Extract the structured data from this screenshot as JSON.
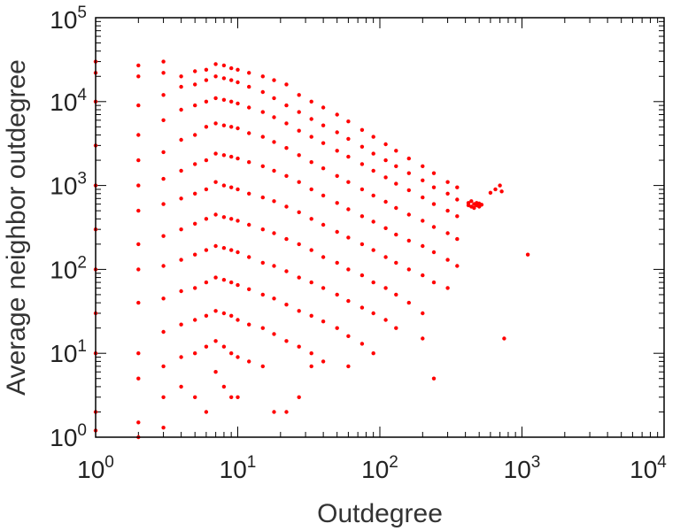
{
  "chart_data": {
    "type": "scatter",
    "title": "",
    "xlabel": "Outdegree",
    "ylabel": "Average neighbor outdegree",
    "x_scale": "log",
    "y_scale": "log",
    "xlim": [
      1,
      10000
    ],
    "ylim": [
      1,
      100000
    ],
    "grid": false,
    "legend": "none",
    "x_ticks": [
      {
        "base": "10",
        "exp": "0",
        "value": 1
      },
      {
        "base": "10",
        "exp": "1",
        "value": 10
      },
      {
        "base": "10",
        "exp": "2",
        "value": 100
      },
      {
        "base": "10",
        "exp": "3",
        "value": 1000
      },
      {
        "base": "10",
        "exp": "4",
        "value": 10000
      }
    ],
    "y_ticks": [
      {
        "base": "10",
        "exp": "0",
        "value": 1
      },
      {
        "base": "10",
        "exp": "1",
        "value": 10
      },
      {
        "base": "10",
        "exp": "2",
        "value": 100
      },
      {
        "base": "10",
        "exp": "3",
        "value": 1000
      },
      {
        "base": "10",
        "exp": "4",
        "value": 10000
      },
      {
        "base": "10",
        "exp": "5",
        "value": 100000
      }
    ],
    "marker_color": "#ff0000",
    "series": [
      {
        "points": [
          [
            1,
            30000
          ],
          [
            1,
            22000
          ],
          [
            1,
            10000
          ],
          [
            1,
            3000
          ],
          [
            1,
            1000
          ],
          [
            1,
            300
          ],
          [
            1,
            100
          ],
          [
            1,
            30
          ],
          [
            1,
            10
          ],
          [
            1,
            2
          ],
          [
            1,
            1.2
          ],
          [
            2,
            27000
          ],
          [
            2,
            20000
          ],
          [
            2,
            9000
          ],
          [
            2,
            4000
          ],
          [
            2,
            2000
          ],
          [
            2,
            1000
          ],
          [
            2,
            500
          ],
          [
            2,
            200
          ],
          [
            2,
            100
          ],
          [
            2,
            40
          ],
          [
            2,
            10
          ],
          [
            2,
            5
          ],
          [
            2,
            1.5
          ],
          [
            2,
            1
          ],
          [
            3,
            30000
          ],
          [
            3,
            22000
          ],
          [
            3,
            12000
          ],
          [
            3,
            6000
          ],
          [
            3,
            2500
          ],
          [
            3,
            1200
          ],
          [
            3,
            600
          ],
          [
            3,
            250
          ],
          [
            3,
            110
          ],
          [
            3,
            45
          ],
          [
            3,
            18
          ],
          [
            3,
            7
          ],
          [
            3,
            3
          ],
          [
            3,
            1.3
          ],
          [
            4,
            20000
          ],
          [
            4,
            15000
          ],
          [
            4,
            8000
          ],
          [
            4,
            3500
          ],
          [
            4,
            1500
          ],
          [
            4,
            700
          ],
          [
            4,
            300
          ],
          [
            4,
            130
          ],
          [
            4,
            55
          ],
          [
            4,
            22
          ],
          [
            4,
            9
          ],
          [
            4,
            4
          ],
          [
            5,
            23000
          ],
          [
            5,
            16000
          ],
          [
            5,
            9000
          ],
          [
            5,
            4000
          ],
          [
            5,
            1800
          ],
          [
            5,
            800
          ],
          [
            5,
            350
          ],
          [
            5,
            150
          ],
          [
            5,
            60
          ],
          [
            5,
            25
          ],
          [
            5,
            10
          ],
          [
            5,
            3
          ],
          [
            6,
            24000
          ],
          [
            6,
            18000
          ],
          [
            6,
            10000
          ],
          [
            6,
            5000
          ],
          [
            6,
            2000
          ],
          [
            6,
            900
          ],
          [
            6,
            400
          ],
          [
            6,
            170
          ],
          [
            6,
            70
          ],
          [
            6,
            28
          ],
          [
            6,
            12
          ],
          [
            6,
            2
          ],
          [
            7,
            28000
          ],
          [
            7,
            20000
          ],
          [
            7,
            11000
          ],
          [
            7,
            5500
          ],
          [
            7,
            2400
          ],
          [
            7,
            1100
          ],
          [
            7,
            450
          ],
          [
            7,
            190
          ],
          [
            7,
            80
          ],
          [
            7,
            32
          ],
          [
            7,
            14
          ],
          [
            7,
            6
          ],
          [
            8,
            27000
          ],
          [
            8,
            19000
          ],
          [
            8,
            10500
          ],
          [
            8,
            5200
          ],
          [
            8,
            2300
          ],
          [
            8,
            1000
          ],
          [
            8,
            420
          ],
          [
            8,
            180
          ],
          [
            8,
            75
          ],
          [
            8,
            30
          ],
          [
            8,
            12
          ],
          [
            8,
            4
          ],
          [
            9,
            25000
          ],
          [
            9,
            18000
          ],
          [
            9,
            10000
          ],
          [
            9,
            5000
          ],
          [
            9,
            2200
          ],
          [
            9,
            950
          ],
          [
            9,
            400
          ],
          [
            9,
            170
          ],
          [
            9,
            70
          ],
          [
            9,
            28
          ],
          [
            9,
            10
          ],
          [
            9,
            3
          ],
          [
            10,
            24000
          ],
          [
            10,
            17000
          ],
          [
            10,
            9500
          ],
          [
            10,
            4800
          ],
          [
            10,
            2100
          ],
          [
            10,
            900
          ],
          [
            10,
            380
          ],
          [
            10,
            160
          ],
          [
            10,
            65
          ],
          [
            10,
            25
          ],
          [
            10,
            9
          ],
          [
            10,
            3
          ],
          [
            12,
            22000
          ],
          [
            12,
            15000
          ],
          [
            12,
            8500
          ],
          [
            12,
            4200
          ],
          [
            12,
            1900
          ],
          [
            12,
            800
          ],
          [
            12,
            340
          ],
          [
            12,
            140
          ],
          [
            12,
            58
          ],
          [
            12,
            22
          ],
          [
            12,
            8
          ],
          [
            15,
            20000
          ],
          [
            15,
            13000
          ],
          [
            15,
            7500
          ],
          [
            15,
            3800
          ],
          [
            15,
            1700
          ],
          [
            15,
            720
          ],
          [
            15,
            300
          ],
          [
            15,
            120
          ],
          [
            15,
            50
          ],
          [
            15,
            20
          ],
          [
            15,
            7
          ],
          [
            18,
            18000
          ],
          [
            18,
            11000
          ],
          [
            18,
            6500
          ],
          [
            18,
            3300
          ],
          [
            18,
            1500
          ],
          [
            18,
            650
          ],
          [
            18,
            270
          ],
          [
            18,
            110
          ],
          [
            18,
            45
          ],
          [
            18,
            17
          ],
          [
            18,
            2
          ],
          [
            22,
            16000
          ],
          [
            22,
            9000
          ],
          [
            22,
            5500
          ],
          [
            22,
            2800
          ],
          [
            22,
            1300
          ],
          [
            22,
            560
          ],
          [
            22,
            230
          ],
          [
            22,
            95
          ],
          [
            22,
            38
          ],
          [
            22,
            14
          ],
          [
            22,
            2
          ],
          [
            27,
            12000
          ],
          [
            27,
            7500
          ],
          [
            27,
            4500
          ],
          [
            27,
            2300
          ],
          [
            27,
            1100
          ],
          [
            27,
            480
          ],
          [
            27,
            200
          ],
          [
            27,
            80
          ],
          [
            27,
            32
          ],
          [
            27,
            12
          ],
          [
            27,
            3
          ],
          [
            33,
            10000
          ],
          [
            33,
            6200
          ],
          [
            33,
            3800
          ],
          [
            33,
            1900
          ],
          [
            33,
            900
          ],
          [
            33,
            400
          ],
          [
            33,
            170
          ],
          [
            33,
            70
          ],
          [
            33,
            28
          ],
          [
            33,
            10
          ],
          [
            33,
            7
          ],
          [
            40,
            8500
          ],
          [
            40,
            5200
          ],
          [
            40,
            3200
          ],
          [
            40,
            1600
          ],
          [
            40,
            760
          ],
          [
            40,
            340
          ],
          [
            40,
            140
          ],
          [
            40,
            60
          ],
          [
            40,
            24
          ],
          [
            40,
            8
          ],
          [
            50,
            7000
          ],
          [
            50,
            4300
          ],
          [
            50,
            2600
          ],
          [
            50,
            1300
          ],
          [
            50,
            620
          ],
          [
            50,
            280
          ],
          [
            50,
            120
          ],
          [
            50,
            50
          ],
          [
            50,
            20
          ],
          [
            60,
            5800
          ],
          [
            60,
            3600
          ],
          [
            60,
            2200
          ],
          [
            60,
            1100
          ],
          [
            60,
            520
          ],
          [
            60,
            240
          ],
          [
            60,
            100
          ],
          [
            60,
            42
          ],
          [
            60,
            16
          ],
          [
            60,
            7
          ],
          [
            75,
            4600
          ],
          [
            75,
            2900
          ],
          [
            75,
            1800
          ],
          [
            75,
            900
          ],
          [
            75,
            430
          ],
          [
            75,
            200
          ],
          [
            75,
            85
          ],
          [
            75,
            35
          ],
          [
            75,
            13
          ],
          [
            90,
            3800
          ],
          [
            90,
            2400
          ],
          [
            90,
            1500
          ],
          [
            90,
            760
          ],
          [
            90,
            370
          ],
          [
            90,
            170
          ],
          [
            90,
            70
          ],
          [
            90,
            30
          ],
          [
            90,
            10
          ],
          [
            110,
            3100
          ],
          [
            110,
            2000
          ],
          [
            110,
            1250
          ],
          [
            110,
            640
          ],
          [
            110,
            310
          ],
          [
            110,
            140
          ],
          [
            110,
            60
          ],
          [
            110,
            25
          ],
          [
            130,
            2600
          ],
          [
            130,
            1700
          ],
          [
            130,
            1050
          ],
          [
            130,
            540
          ],
          [
            130,
            260
          ],
          [
            130,
            120
          ],
          [
            130,
            50
          ],
          [
            130,
            20
          ],
          [
            160,
            2100
          ],
          [
            160,
            1400
          ],
          [
            160,
            880
          ],
          [
            160,
            450
          ],
          [
            160,
            220
          ],
          [
            160,
            100
          ],
          [
            160,
            40
          ],
          [
            200,
            1700
          ],
          [
            200,
            1150
          ],
          [
            200,
            720
          ],
          [
            200,
            380
          ],
          [
            200,
            190
          ],
          [
            200,
            85
          ],
          [
            200,
            30
          ],
          [
            200,
            15
          ],
          [
            240,
            1400
          ],
          [
            240,
            950
          ],
          [
            240,
            600
          ],
          [
            240,
            320
          ],
          [
            240,
            160
          ],
          [
            240,
            70
          ],
          [
            240,
            5
          ],
          [
            300,
            1100
          ],
          [
            300,
            800
          ],
          [
            300,
            500
          ],
          [
            300,
            270
          ],
          [
            300,
            130
          ],
          [
            300,
            60
          ],
          [
            350,
            950
          ],
          [
            350,
            680
          ],
          [
            350,
            430
          ],
          [
            350,
            230
          ],
          [
            350,
            110
          ],
          [
            420,
            620
          ],
          [
            420,
            580
          ],
          [
            440,
            650
          ],
          [
            440,
            560
          ],
          [
            460,
            600
          ],
          [
            460,
            540
          ],
          [
            480,
            620
          ],
          [
            480,
            580
          ],
          [
            500,
            560
          ],
          [
            500,
            610
          ],
          [
            520,
            590
          ],
          [
            600,
            820
          ],
          [
            650,
            900
          ],
          [
            700,
            1000
          ],
          [
            720,
            850
          ],
          [
            1100,
            150
          ],
          [
            750,
            15
          ]
        ]
      }
    ]
  }
}
